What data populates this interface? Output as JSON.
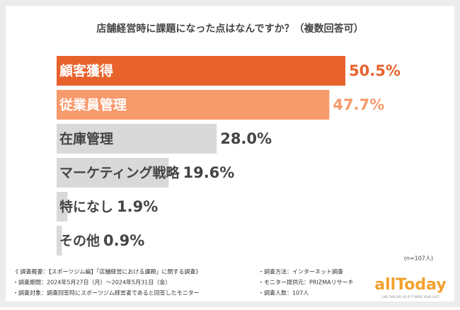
{
  "chart_data": {
    "type": "bar",
    "orientation": "horizontal",
    "title": "店舗経営時に課題になった点はなんですか？（複数回答可）",
    "categories": [
      "顧客獲得",
      "従業員管理",
      "在庫管理",
      "マーケティング戦略",
      "特になし",
      "その他"
    ],
    "values": [
      50.5,
      47.7,
      28.0,
      19.6,
      1.9,
      0.9
    ],
    "value_labels": [
      "50.5%",
      "47.7%",
      "28.0%",
      "19.6%",
      "1.9%",
      "0.9%"
    ],
    "colors": [
      "#e8622c",
      "#f79a6c",
      "#d9d9d9",
      "#d9d9d9",
      "#d9d9d9",
      "#d9d9d9"
    ],
    "label_colors": [
      "#ffffff",
      "#ffffff",
      "#444444",
      "#444444",
      "#444444",
      "#444444"
    ],
    "value_colors": [
      "#e8622c",
      "#f79a6c",
      "#444444",
      "#444444",
      "#444444",
      "#444444"
    ],
    "sample_note": "(n=107人)"
  },
  "footer": {
    "left": [
      "《 調査概要：【スポーツジム編】「店舗経営における課題」に関する調査》",
      "・調査期間：2024年5月27日（月）～2024年5月31日（金）",
      "・調査対象：調査回答時にスポーツジム経営者であると回答したモニター"
    ],
    "right": [
      "・調査方法：インターネット調査",
      "・モニター提供元：PRIZMAリサーチ",
      "・調査人数：107人"
    ],
    "logo": "allToday",
    "tagline": "LIVE THIS DAY AS IF IT WERE YOUR LAST"
  }
}
